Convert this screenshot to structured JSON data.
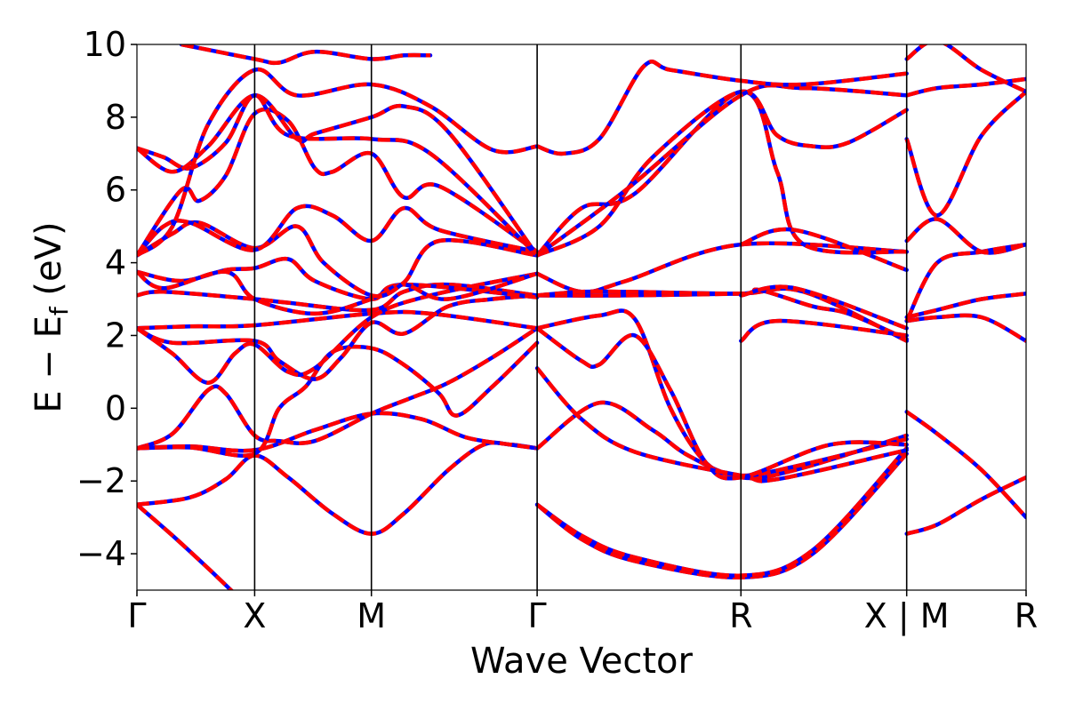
{
  "chart_data": {
    "type": "line",
    "xlabel": "Wave Vector",
    "ylabel": "E − E_f (eV)",
    "ylabel_parts": {
      "main": "E − E",
      "sub": "f",
      "unit": " (eV)"
    },
    "ylim": [
      -5,
      10
    ],
    "y_ticks": [
      -4,
      -2,
      0,
      2,
      4,
      6,
      8,
      10
    ],
    "y_tick_labels": [
      "−4",
      "−2",
      "0",
      "2",
      "4",
      "6",
      "8",
      "10"
    ],
    "x_range": [
      0,
      1
    ],
    "k_points": [
      {
        "label": "Γ",
        "x": 0.0
      },
      {
        "label": "X",
        "x": 0.1324
      },
      {
        "label": "M",
        "x": 0.2637
      },
      {
        "label": "Γ",
        "x": 0.4501
      },
      {
        "label": "R",
        "x": 0.6793
      },
      {
        "label": "X | M",
        "x": 0.8657
      },
      {
        "label": "R",
        "x": 1.0
      }
    ],
    "segment_breaks": [
      0.8657
    ],
    "grid": false,
    "legend": "none",
    "series_style": [
      {
        "color": "#0000ff",
        "dash": "solid"
      },
      {
        "color": "#ff0000",
        "dash": "dashed"
      }
    ],
    "bands": [
      [
        [
          0,
          -2.65
        ],
        [
          0.04,
          -3.5
        ],
        [
          0.08,
          -4.4
        ],
        [
          0.11,
          -5.1
        ]
      ],
      [
        [
          0,
          -2.65
        ],
        [
          0.06,
          -2.45
        ],
        [
          0.1,
          -1.95
        ],
        [
          0.1324,
          -1.3
        ],
        [
          0.17,
          -1.9
        ],
        [
          0.22,
          -2.9
        ],
        [
          0.2637,
          -3.45
        ],
        [
          0.3,
          -2.9
        ],
        [
          0.35,
          -1.7
        ],
        [
          0.39,
          -1.0
        ],
        [
          0.42,
          -1.0
        ],
        [
          0.4501,
          -1.1
        ]
      ],
      [
        [
          0,
          -1.1
        ],
        [
          0.06,
          -1.05
        ],
        [
          0.1324,
          -1.15
        ],
        [
          0.2,
          -0.6
        ],
        [
          0.2637,
          -0.15
        ],
        [
          0.32,
          -0.3
        ],
        [
          0.37,
          -0.8
        ],
        [
          0.42,
          -1.0
        ],
        [
          0.4501,
          -1.1
        ]
      ],
      [
        [
          0,
          -1.1
        ],
        [
          0.04,
          -0.7
        ],
        [
          0.08,
          0.5
        ],
        [
          0.1,
          0.4
        ],
        [
          0.1324,
          -0.75
        ],
        [
          0.16,
          -0.9
        ],
        [
          0.2,
          -0.9
        ],
        [
          0.2637,
          -0.15
        ],
        [
          0.31,
          0.3
        ],
        [
          0.35,
          0.7
        ],
        [
          0.4,
          1.4
        ],
        [
          0.4501,
          2.2
        ]
      ],
      [
        [
          0,
          -1.1
        ],
        [
          0.06,
          -1.08
        ],
        [
          0.1324,
          -1.25
        ],
        [
          0.16,
          0.0
        ],
        [
          0.19,
          0.6
        ],
        [
          0.22,
          1.55
        ],
        [
          0.2637,
          1.65
        ],
        [
          0.3,
          1.2
        ],
        [
          0.34,
          0.4
        ],
        [
          0.36,
          -0.2
        ],
        [
          0.4,
          0.6
        ],
        [
          0.4501,
          1.8
        ]
      ],
      [
        [
          0,
          2.2
        ],
        [
          0.06,
          2.25
        ],
        [
          0.1324,
          2.28
        ],
        [
          0.2637,
          2.6
        ],
        [
          0.33,
          2.6
        ],
        [
          0.4501,
          2.2
        ]
      ],
      [
        [
          0,
          2.2
        ],
        [
          0.04,
          1.8
        ],
        [
          0.1324,
          1.85
        ],
        [
          0.16,
          1.3
        ],
        [
          0.2,
          0.8
        ],
        [
          0.23,
          1.4
        ],
        [
          0.2637,
          2.35
        ],
        [
          0.3,
          2.05
        ],
        [
          0.35,
          2.8
        ],
        [
          0.4,
          3.0
        ],
        [
          0.4501,
          3.1
        ]
      ],
      [
        [
          0,
          2.2
        ],
        [
          0.04,
          1.5
        ],
        [
          0.08,
          0.7
        ],
        [
          0.11,
          1.5
        ],
        [
          0.1324,
          1.75
        ],
        [
          0.17,
          1.0
        ],
        [
          0.2,
          1.1
        ],
        [
          0.2637,
          2.5
        ],
        [
          0.33,
          3.1
        ],
        [
          0.4501,
          3.7
        ]
      ],
      [
        [
          0,
          3.1
        ],
        [
          0.03,
          3.2
        ],
        [
          0.1324,
          3.0
        ],
        [
          0.17,
          2.9
        ],
        [
          0.2637,
          2.7
        ],
        [
          0.3,
          3.2
        ],
        [
          0.35,
          3.4
        ],
        [
          0.4501,
          3.1
        ]
      ],
      [
        [
          0,
          3.75
        ],
        [
          0.05,
          3.5
        ],
        [
          0.1,
          3.8
        ],
        [
          0.1324,
          3.85
        ],
        [
          0.17,
          4.1
        ],
        [
          0.2,
          3.5
        ],
        [
          0.2637,
          3.0
        ],
        [
          0.3,
          3.4
        ],
        [
          0.4501,
          3.05
        ]
      ],
      [
        [
          0,
          3.75
        ],
        [
          0.03,
          3.3
        ],
        [
          0.1,
          3.75
        ],
        [
          0.1324,
          3.0
        ],
        [
          0.2,
          2.6
        ],
        [
          0.2637,
          3.0
        ],
        [
          0.3,
          3.4
        ],
        [
          0.35,
          3.0
        ],
        [
          0.4501,
          3.7
        ]
      ],
      [
        [
          0,
          4.2
        ],
        [
          0.04,
          4.8
        ],
        [
          0.07,
          5.1
        ],
        [
          0.1324,
          4.4
        ],
        [
          0.18,
          5.0
        ],
        [
          0.21,
          4.0
        ],
        [
          0.2637,
          3.1
        ],
        [
          0.3,
          3.45
        ],
        [
          0.34,
          4.6
        ],
        [
          0.4501,
          4.2
        ]
      ],
      [
        [
          0,
          4.2
        ],
        [
          0.03,
          5.0
        ],
        [
          0.06,
          5.1
        ],
        [
          0.1324,
          4.35
        ],
        [
          0.18,
          5.5
        ],
        [
          0.22,
          5.3
        ],
        [
          0.2637,
          4.6
        ],
        [
          0.3,
          5.5
        ],
        [
          0.34,
          4.9
        ],
        [
          0.4501,
          4.3
        ]
      ],
      [
        [
          0,
          4.2
        ],
        [
          0.05,
          6.0
        ],
        [
          0.07,
          5.7
        ],
        [
          0.1,
          6.4
        ],
        [
          0.1324,
          8.1
        ],
        [
          0.17,
          7.9
        ],
        [
          0.2,
          6.6
        ],
        [
          0.22,
          6.5
        ],
        [
          0.2637,
          7.0
        ],
        [
          0.3,
          5.8
        ],
        [
          0.34,
          6.1
        ],
        [
          0.4501,
          4.3
        ]
      ],
      [
        [
          0,
          7.15
        ],
        [
          0.03,
          6.9
        ],
        [
          0.06,
          6.6
        ],
        [
          0.1,
          7.3
        ],
        [
          0.1324,
          8.6
        ],
        [
          0.17,
          7.5
        ],
        [
          0.2637,
          7.4
        ],
        [
          0.33,
          7.0
        ],
        [
          0.4501,
          4.2
        ]
      ],
      [
        [
          0,
          7.15
        ],
        [
          0.04,
          6.5
        ],
        [
          0.08,
          7.2
        ],
        [
          0.1324,
          8.6
        ],
        [
          0.18,
          7.4
        ],
        [
          0.2,
          7.55
        ],
        [
          0.2637,
          8.0
        ],
        [
          0.3,
          8.3
        ],
        [
          0.35,
          7.6
        ],
        [
          0.4501,
          4.2
        ]
      ],
      [
        [
          0,
          4.2
        ],
        [
          0.04,
          5.0
        ],
        [
          0.08,
          7.8
        ],
        [
          0.1324,
          9.3
        ],
        [
          0.18,
          8.6
        ],
        [
          0.2637,
          8.9
        ],
        [
          0.33,
          8.3
        ],
        [
          0.4,
          7.1
        ],
        [
          0.4501,
          7.2
        ]
      ],
      [
        [
          0.05,
          10.0
        ],
        [
          0.1324,
          9.6
        ],
        [
          0.16,
          9.5
        ],
        [
          0.2,
          9.8
        ],
        [
          0.2637,
          9.6
        ],
        [
          0.3,
          9.7
        ],
        [
          0.33,
          9.7
        ]
      ],
      [
        [
          0.4501,
          -2.65
        ],
        [
          0.5,
          -3.6
        ],
        [
          0.56,
          -4.2
        ],
        [
          0.6793,
          -4.65
        ],
        [
          0.76,
          -4.0
        ],
        [
          0.8657,
          -1.25
        ]
      ],
      [
        [
          0.4501,
          -2.65
        ],
        [
          0.5,
          -3.5
        ],
        [
          0.56,
          -4.1
        ],
        [
          0.6793,
          -4.6
        ],
        [
          0.76,
          -3.9
        ],
        [
          0.8657,
          -1.1
        ]
      ],
      [
        [
          0.4501,
          -1.1
        ],
        [
          0.52,
          0.15
        ],
        [
          0.58,
          -0.6
        ],
        [
          0.62,
          -1.3
        ],
        [
          0.6793,
          -1.9
        ],
        [
          0.74,
          -1.7
        ],
        [
          0.8657,
          -0.75
        ]
      ],
      [
        [
          0.4501,
          2.2
        ],
        [
          0.52,
          2.55
        ],
        [
          0.56,
          2.45
        ],
        [
          0.6,
          0.0
        ],
        [
          0.64,
          -1.5
        ],
        [
          0.6793,
          -1.85
        ],
        [
          0.74,
          -1.6
        ],
        [
          0.8657,
          -0.85
        ]
      ],
      [
        [
          0.4501,
          2.2
        ],
        [
          0.5,
          1.3
        ],
        [
          0.52,
          1.2
        ],
        [
          0.56,
          2.0
        ],
        [
          0.6,
          0.5
        ],
        [
          0.64,
          -1.5
        ],
        [
          0.6793,
          -1.9
        ],
        [
          0.78,
          -1.0
        ],
        [
          0.8657,
          -1.0
        ]
      ],
      [
        [
          0.4501,
          1.1
        ],
        [
          0.5,
          -0.3
        ],
        [
          0.56,
          -1.2
        ],
        [
          0.6793,
          -1.85
        ],
        [
          0.72,
          -1.95
        ],
        [
          0.8657,
          -1.15
        ]
      ],
      [
        [
          0.4501,
          3.1
        ],
        [
          0.55,
          3.1
        ],
        [
          0.6793,
          3.15
        ],
        [
          0.75,
          3.2
        ],
        [
          0.8657,
          1.85
        ]
      ],
      [
        [
          0.4501,
          3.7
        ],
        [
          0.5,
          3.2
        ],
        [
          0.55,
          3.5
        ],
        [
          0.6793,
          4.5
        ],
        [
          0.8657,
          4.3
        ]
      ],
      [
        [
          0.4501,
          4.2
        ],
        [
          0.5,
          5.5
        ],
        [
          0.56,
          5.9
        ],
        [
          0.6793,
          8.7
        ],
        [
          0.72,
          6.5
        ],
        [
          0.75,
          4.5
        ],
        [
          0.8657,
          4.3
        ]
      ],
      [
        [
          0.4501,
          4.2
        ],
        [
          0.52,
          5.0
        ],
        [
          0.58,
          6.9
        ],
        [
          0.6793,
          8.7
        ],
        [
          0.72,
          7.5
        ],
        [
          0.76,
          7.2
        ],
        [
          0.8,
          7.3
        ],
        [
          0.8657,
          8.2
        ]
      ],
      [
        [
          0.4501,
          4.2
        ],
        [
          0.55,
          6.0
        ],
        [
          0.6793,
          8.6
        ],
        [
          0.75,
          8.8
        ],
        [
          0.8657,
          8.6
        ]
      ],
      [
        [
          0.4501,
          7.2
        ],
        [
          0.48,
          7.0
        ],
        [
          0.52,
          7.4
        ],
        [
          0.57,
          9.4
        ],
        [
          0.6,
          9.3
        ],
        [
          0.6793,
          9.0
        ],
        [
          0.75,
          8.9
        ],
        [
          0.8657,
          9.2
        ]
      ],
      [
        [
          0.4501,
          3.1
        ],
        [
          0.5,
          3.2
        ],
        [
          0.55,
          3.2
        ],
        [
          0.6793,
          3.15
        ],
        [
          0.7,
          3.25
        ],
        [
          0.76,
          2.8
        ],
        [
          0.8,
          2.6
        ],
        [
          0.8657,
          1.9
        ]
      ],
      [
        [
          0.6793,
          1.85
        ],
        [
          0.72,
          2.4
        ],
        [
          0.8657,
          2.0
        ]
      ],
      [
        [
          0.6793,
          3.1
        ],
        [
          0.74,
          3.3
        ],
        [
          0.8657,
          2.2
        ]
      ],
      [
        [
          0.6793,
          4.5
        ],
        [
          0.74,
          4.9
        ],
        [
          0.8657,
          3.8
        ]
      ],
      [
        [
          0.8657,
          -0.1
        ],
        [
          0.9,
          -0.7
        ],
        [
          0.95,
          -1.7
        ],
        [
          1.0,
          -3.0
        ]
      ],
      [
        [
          0.8657,
          -3.45
        ],
        [
          0.9,
          -3.2
        ],
        [
          0.95,
          -2.5
        ],
        [
          1.0,
          -1.9
        ]
      ],
      [
        [
          0.8657,
          2.4
        ],
        [
          0.9,
          2.5
        ],
        [
          0.95,
          2.5
        ],
        [
          1.0,
          1.85
        ]
      ],
      [
        [
          0.8657,
          2.5
        ],
        [
          0.9,
          2.7
        ],
        [
          0.95,
          3.0
        ],
        [
          1.0,
          3.15
        ]
      ],
      [
        [
          0.8657,
          2.4
        ],
        [
          0.9,
          4.0
        ],
        [
          0.95,
          4.3
        ],
        [
          1.0,
          4.5
        ]
      ],
      [
        [
          0.8657,
          4.6
        ],
        [
          0.9,
          5.2
        ],
        [
          0.95,
          4.3
        ],
        [
          1.0,
          4.5
        ]
      ],
      [
        [
          0.8657,
          7.4
        ],
        [
          0.9,
          5.3
        ],
        [
          0.95,
          7.5
        ],
        [
          1.0,
          8.7
        ]
      ],
      [
        [
          0.8657,
          8.6
        ],
        [
          0.9,
          8.8
        ],
        [
          0.95,
          8.9
        ],
        [
          1.0,
          9.05
        ]
      ],
      [
        [
          0.8657,
          9.6
        ],
        [
          0.9,
          10.1
        ],
        [
          0.95,
          9.3
        ],
        [
          1.0,
          8.7
        ]
      ]
    ]
  }
}
